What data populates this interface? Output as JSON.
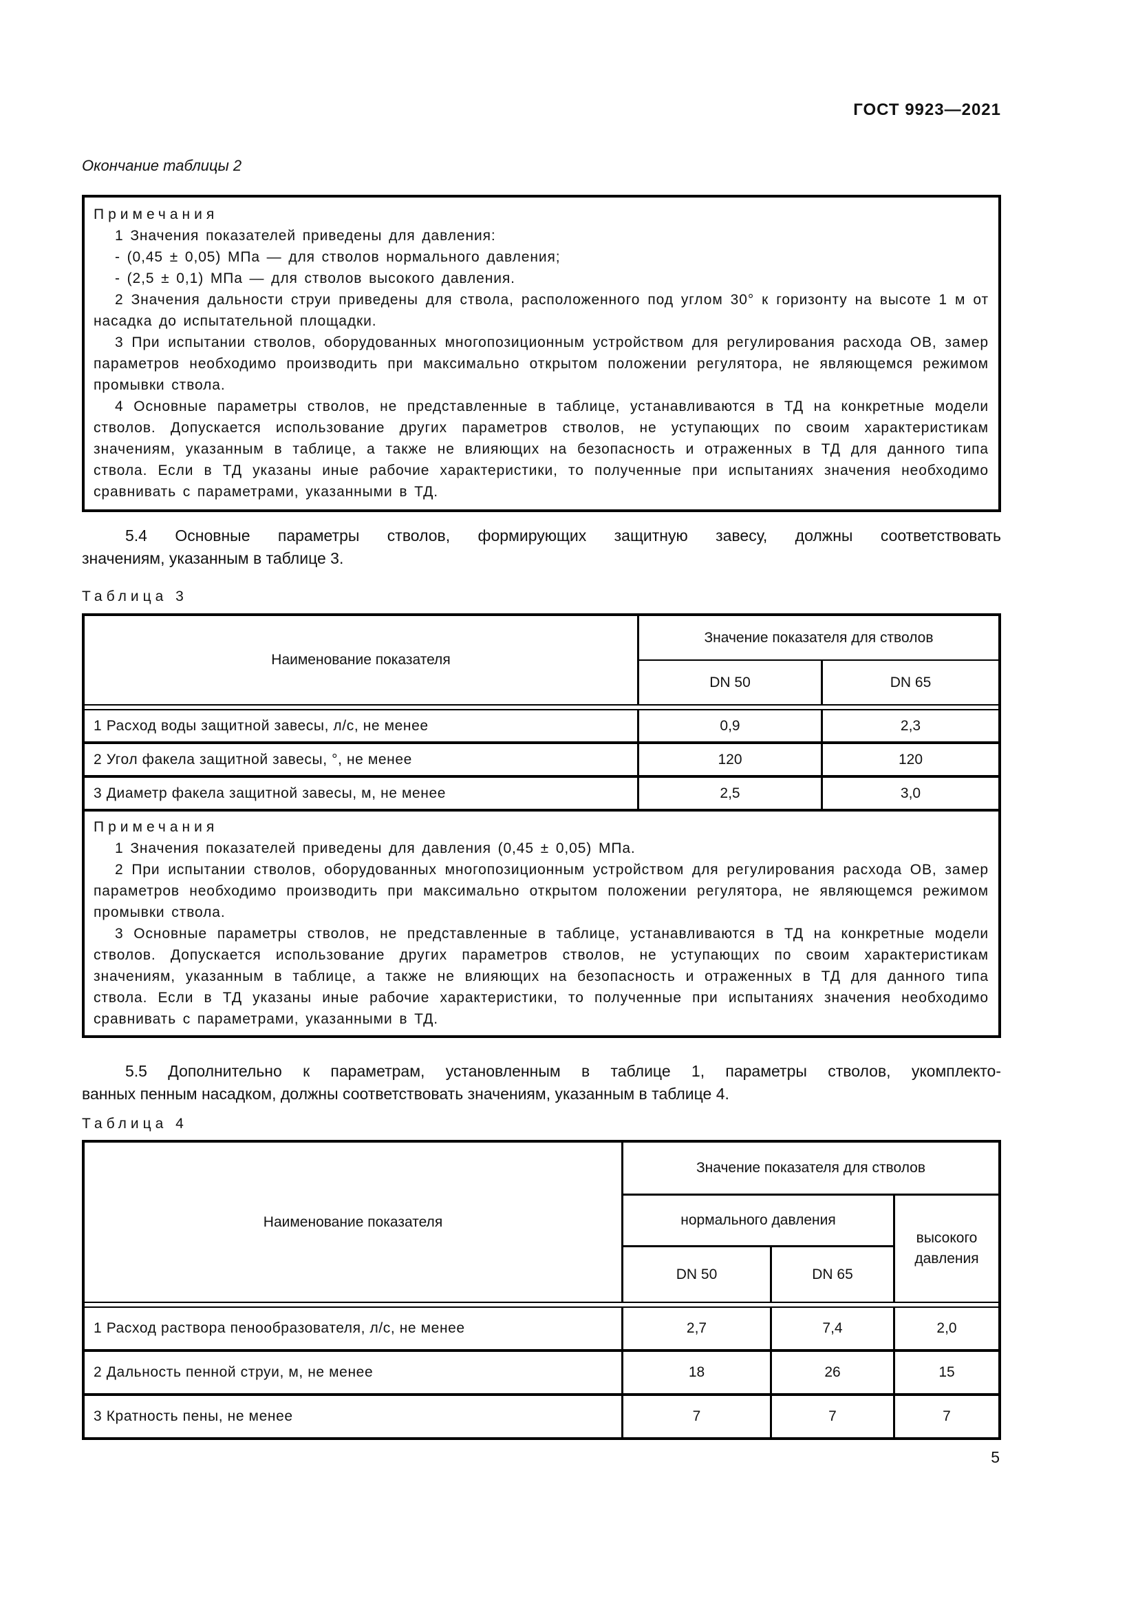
{
  "page": {
    "standard_code": "ГОСТ 9923—2021",
    "continuation_label": "Окончание таблицы 2",
    "page_number": "5"
  },
  "table2_notes": {
    "heading": "Примечания",
    "items": [
      "1  Значения показателей приведены для давления:",
      "- (0,45 ± 0,05) МПа — для стволов нормального давления;",
      "- (2,5 ± 0,1) МПа — для стволов высокого давления.",
      "2  Значения дальности струи приведены для ствола, расположенного под углом 30° к горизонту на высоте 1 м от насадка до испытательной площадки.",
      "3  При испытании стволов, оборудованных многопозиционным устройством для регулирования расхода ОВ, замер параметров необходимо производить при максимально открытом положении регулятора, не являющемся режимом промывки ствола.",
      "4  Основные параметры стволов, не представленные в таблице, устанавливаются в ТД на конкретные модели стволов. Допускается использование других параметров стволов, не уступающих по своим характеристикам значениям, указанным в таблице, а также не влияющих на безопасность и отраженных в ТД для данного типа ствола. Если в ТД указаны иные рабочие характеристики, то полученные при испытаниях значения необходимо сравнивать с параметрами, указанными в ТД."
    ]
  },
  "para_5_4": {
    "line1": "5.4 Основные параметры стволов, формирующих защитную завесу, должны соответствовать",
    "line2": "значениям, указанным в таблице 3."
  },
  "table3": {
    "label": "Таблица 3",
    "name_header": "Наименование показателя",
    "value_header": "Значение показателя для стволов",
    "columns": {
      "dn50": "DN 50",
      "dn65": "DN 65"
    },
    "rows": [
      {
        "name": "1 Расход воды защитной завесы, л/с, не менее",
        "dn50": "0,9",
        "dn65": "2,3"
      },
      {
        "name": "2 Угол факела защитной завесы, °, не менее",
        "dn50": "120",
        "dn65": "120"
      },
      {
        "name": "3 Диаметр факела защитной завесы, м, не менее",
        "dn50": "2,5",
        "dn65": "3,0"
      }
    ],
    "notes": {
      "heading": "Примечания",
      "items": [
        "1  Значения показателей приведены для давления (0,45 ± 0,05) МПа.",
        "2  При испытании стволов, оборудованных многопозиционным устройством для регулирования расхода ОВ, замер параметров необходимо производить при максимально открытом положении регулятора, не являющемся режимом промывки ствола.",
        "3  Основные параметры стволов, не представленные в таблице, устанавливаются в ТД на конкретные модели стволов. Допускается использование других параметров стволов, не уступающих по своим характеристикам значениям, указанным в таблице, а также не влияющих на безопасность и отраженных в ТД для данного типа ствола. Если в ТД указаны иные рабочие характеристики, то полученные при испытаниях значения необходимо сравнивать с параметрами, указанными в ТД."
      ]
    }
  },
  "para_5_5": {
    "line1": "5.5 Дополнительно к параметрам, установленным в таблице 1, параметры стволов, укомплекто-",
    "line2": "ванных пенным насадком, должны соответствовать значениям, указанным в таблице 4."
  },
  "table4": {
    "label": "Таблица 4",
    "name_header": "Наименование показателя",
    "value_header": "Значение показателя для стволов",
    "group_normal": "нормального давления",
    "group_high": "высокого давления",
    "columns": {
      "dn50": "DN 50",
      "dn65": "DN 65"
    },
    "rows": [
      {
        "name": "1 Расход раствора пенообразователя, л/с, не менее",
        "dn50": "2,7",
        "dn65": "7,4",
        "high": "2,0"
      },
      {
        "name": "2 Дальность пенной струи, м, не менее",
        "dn50": "18",
        "dn65": "26",
        "high": "15"
      },
      {
        "name": "3 Кратность пены, не менее",
        "dn50": "7",
        "dn65": "7",
        "high": "7"
      }
    ]
  }
}
